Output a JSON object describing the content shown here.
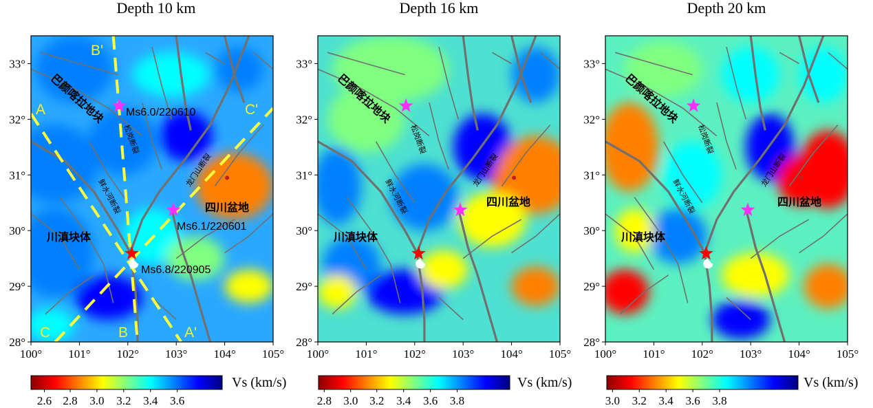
{
  "colors": {
    "cpt": [
      "#8b0000",
      "#ff0000",
      "#ff8000",
      "#ffff00",
      "#80ff80",
      "#00ffff",
      "#0080ff",
      "#0000ff",
      "#000080"
    ],
    "fault": "#707070",
    "profile": "#ffff40",
    "star_main": "#ff0000",
    "star_aftershock": "#ff30ff"
  },
  "panels": [
    {
      "title": "Depth 10 km",
      "colorbar": {
        "unit": "Vs (km/s)",
        "ticks": [
          "2.6",
          "2.8",
          "3.0",
          "3.2",
          "3.4",
          "3.6"
        ]
      },
      "show_eq_labels": true,
      "show_profiles": true
    },
    {
      "title": "Depth 16 km",
      "colorbar": {
        "unit": "Vs (km/s)",
        "ticks": [
          "2.8",
          "3.0",
          "3.2",
          "3.4",
          "3.6",
          "3.8"
        ]
      },
      "show_eq_labels": false,
      "show_profiles": false
    },
    {
      "title": "Depth 20 km",
      "colorbar": {
        "unit": "Vs (km/s)",
        "ticks": [
          "3.0",
          "3.2",
          "3.4",
          "3.6",
          "3.8"
        ]
      },
      "show_eq_labels": false,
      "show_profiles": false
    }
  ],
  "axes": {
    "x_ticks": [
      "100°",
      "101°",
      "102°",
      "103°",
      "104°",
      "105°"
    ],
    "y_ticks": [
      "28°",
      "29°",
      "30°",
      "31°",
      "32°",
      "33°"
    ],
    "x_range": [
      100,
      105
    ],
    "y_range": [
      28,
      33.5
    ]
  },
  "labels": {
    "bayan_har": "巴颜喀拉地块",
    "sichuan_basin": "四川盆地",
    "chuandian": "川滇块体",
    "songgang_fault": "松岗断裂",
    "longmenshan_fault": "龙门山断裂",
    "xianshuihe_fault": "鲜水河断裂"
  },
  "earthquakes": [
    {
      "label": "Ms6.0/220610",
      "lon": 101.82,
      "lat": 32.24,
      "type": "aftershock"
    },
    {
      "label": "Ms6.1/220601",
      "lon": 102.94,
      "lat": 30.37,
      "type": "aftershock"
    },
    {
      "label": "Ms6.8/220905",
      "lon": 102.08,
      "lat": 29.59,
      "type": "main"
    }
  ],
  "profiles": [
    {
      "start": "A",
      "end": "A'",
      "from": [
        100.0,
        32.1
      ],
      "to": [
        103.1,
        28.0
      ]
    },
    {
      "start": "B'",
      "end": "B",
      "from": [
        101.7,
        33.5
      ],
      "to": [
        102.2,
        28.0
      ]
    },
    {
      "start": "C",
      "end": "C'",
      "from": [
        100.5,
        28.0
      ],
      "to": [
        105.0,
        32.2
      ]
    }
  ]
}
